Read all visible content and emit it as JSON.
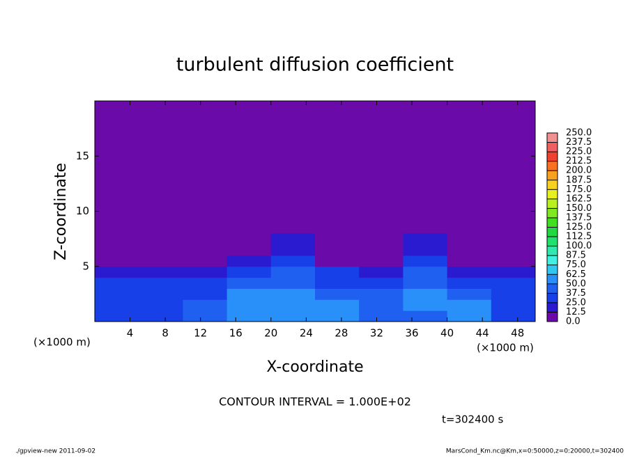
{
  "chart_data": {
    "type": "heatmap",
    "title": "turbulent diffusion coefficient",
    "xlabel": "X-coordinate",
    "ylabel": "Z-coordinate",
    "x_unit": "(×1000 m)",
    "note": "CONTOUR INTERVAL = 1.000E+02",
    "time_label": "t=302400 s",
    "footer_left": "./gpview-new  2011-09-02",
    "footer_right": "MarsCond_Km.nc@Km,x=0:50000,z=0:20000,t=302400",
    "xlim": [
      0,
      50
    ],
    "ylim": [
      0,
      20
    ],
    "xticks": [
      4,
      8,
      12,
      16,
      20,
      24,
      28,
      32,
      36,
      40,
      44,
      48
    ],
    "yticks": [
      5,
      10,
      15
    ],
    "xbins": [
      0,
      5,
      10,
      15,
      20,
      25,
      30,
      35,
      40,
      45,
      50
    ],
    "ybins": [
      0,
      1,
      2,
      3,
      4,
      5,
      6,
      8,
      20
    ],
    "z": [
      [
        35,
        30,
        40,
        55,
        50,
        55,
        45,
        40,
        55,
        35
      ],
      [
        30,
        35,
        45,
        60,
        55,
        50,
        45,
        60,
        50,
        30
      ],
      [
        25,
        30,
        35,
        55,
        50,
        40,
        40,
        55,
        45,
        25
      ],
      [
        30,
        30,
        25,
        45,
        40,
        30,
        30,
        45,
        35,
        25
      ],
      [
        15,
        20,
        20,
        30,
        45,
        25,
        20,
        40,
        20,
        15
      ],
      [
        0,
        5,
        10,
        15,
        35,
        10,
        10,
        30,
        10,
        5
      ],
      [
        0,
        0,
        5,
        5,
        20,
        0,
        5,
        15,
        5,
        0
      ],
      [
        0,
        0,
        0,
        0,
        0,
        0,
        0,
        0,
        0,
        0
      ]
    ],
    "colorbar": {
      "levels": [
        {
          "value": 0,
          "label": "0.0"
        },
        {
          "value": 12.5,
          "label": "12.5"
        },
        {
          "value": 25,
          "label": "25.0"
        },
        {
          "value": 37.5,
          "label": "37.5"
        },
        {
          "value": 50,
          "label": "50.0"
        },
        {
          "value": 62.5,
          "label": "62.5"
        },
        {
          "value": 75,
          "label": "75.0"
        },
        {
          "value": 87.5,
          "label": "87.5"
        },
        {
          "value": 100,
          "label": "100.0"
        },
        {
          "value": 112.5,
          "label": "112.5"
        },
        {
          "value": 125,
          "label": "125.0"
        },
        {
          "value": 137.5,
          "label": "137.5"
        },
        {
          "value": 150,
          "label": "150.0"
        },
        {
          "value": 162.5,
          "label": "162.5"
        },
        {
          "value": 175,
          "label": "175.0"
        },
        {
          "value": 187.5,
          "label": "187.5"
        },
        {
          "value": 200,
          "label": "200.0"
        },
        {
          "value": 212.5,
          "label": "212.5"
        },
        {
          "value": 225,
          "label": "225.0"
        },
        {
          "value": 237.5,
          "label": "237.5"
        },
        {
          "value": 250,
          "label": "250.0"
        }
      ],
      "colors": [
        "#6a0aa8",
        "#2a1ad0",
        "#1840e8",
        "#2060f0",
        "#2890f8",
        "#30c8f0",
        "#40f0e0",
        "#30e8b0",
        "#20e070",
        "#20d840",
        "#40e020",
        "#80e820",
        "#b8f020",
        "#e8f020",
        "#f8d020",
        "#f8a020",
        "#f87020",
        "#f04030",
        "#f06060",
        "#f09090"
      ]
    }
  }
}
